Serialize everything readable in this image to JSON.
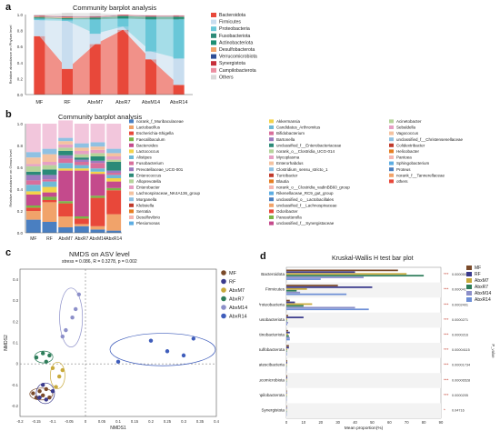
{
  "panels": {
    "a": {
      "label": "a",
      "title": "Community barplot analysis"
    },
    "b": {
      "label": "b",
      "title": "Community barplot analysis"
    },
    "c": {
      "label": "c",
      "title": "NMDS on ASV level",
      "stress": "stress = 0.086, R = 0.3278, p = 0.002"
    },
    "d": {
      "label": "d",
      "title": "Kruskal-Wallis H test bar plot"
    }
  },
  "chart_data": [
    {
      "type": "bar",
      "stacked": true,
      "title": "Community barplot analysis",
      "ylabel": "Relative abundance on Phylum level",
      "categories": [
        "MF",
        "RF",
        "AbxM7",
        "AbxR7",
        "AbxM14",
        "AbxR14"
      ],
      "yticks": [
        "0.0",
        "0.2",
        "0.4",
        "0.6",
        "0.8",
        "1.0"
      ],
      "ylim": [
        0,
        1
      ],
      "series": [
        {
          "name": "Bacteroidota",
          "color": "#e8483a",
          "values": [
            0.73,
            0.32,
            0.63,
            0.81,
            0.44,
            0.12
          ]
        },
        {
          "name": "Firmicutes",
          "color": "#c8ddef",
          "values": [
            0.2,
            0.6,
            0.13,
            0.04,
            0.1,
            0.33
          ]
        },
        {
          "name": "Proteobacteria",
          "color": "#69c7d8",
          "values": [
            0.02,
            0.02,
            0.18,
            0.1,
            0.4,
            0.49
          ]
        },
        {
          "name": "Fusobacteriota",
          "color": "#2b8a78",
          "values": [
            0.005,
            0.005,
            0.01,
            0.01,
            0.01,
            0.01
          ]
        },
        {
          "name": "Actinobacteriota",
          "color": "#1d8f72",
          "values": [
            0.01,
            0.01,
            0.01,
            0.02,
            0.02,
            0.02
          ]
        },
        {
          "name": "Desulfobacterota",
          "color": "#f1a36a",
          "values": [
            0.01,
            0.01,
            0.005,
            0.005,
            0.005,
            0.005
          ]
        },
        {
          "name": "Verrucomicrobiota",
          "color": "#2e4e96",
          "values": [
            0.005,
            0.005,
            0.005,
            0.005,
            0.005,
            0.005
          ]
        },
        {
          "name": "Synergistota",
          "color": "#c72f3a",
          "values": [
            0.005,
            0.005,
            0.005,
            0.005,
            0.005,
            0.005
          ]
        },
        {
          "name": "Campilobacterota",
          "color": "#eb8fa1",
          "values": [
            0.005,
            0.005,
            0.005,
            0.005,
            0.005,
            0.005
          ]
        },
        {
          "name": "Others",
          "color": "#d9d9d9",
          "values": [
            0.01,
            0.04,
            0.04,
            0.0,
            0.0,
            0.0
          ]
        }
      ]
    },
    {
      "type": "bar",
      "stacked": true,
      "title": "Community barplot analysis",
      "ylabel": "Relative abundance on Genus level",
      "categories": [
        "MF",
        "RF",
        "AbxM7",
        "AbxR7",
        "AbxM14",
        "AbxR14"
      ],
      "yticks": [
        "0.0",
        "0.2",
        "0.4",
        "0.6",
        "0.8",
        "1.0"
      ],
      "ylim": [
        0,
        1
      ],
      "series": [
        {
          "name": "norank_f_Muribaculaceae",
          "color": "#4a7fc1",
          "values": [
            0.12,
            0.1,
            0.05,
            0.06,
            0.03,
            0.02
          ]
        },
        {
          "name": "Lactobacillus",
          "color": "#f1a36a",
          "values": [
            0.08,
            0.18,
            0.1,
            0.02,
            0.03,
            0.15
          ]
        },
        {
          "name": "Escherichia-Shigella",
          "color": "#e8483a",
          "values": [
            0.03,
            0.02,
            0.12,
            0.05,
            0.26,
            0.22
          ]
        },
        {
          "name": "Faecalibaculum",
          "color": "#7ab648",
          "values": [
            0.02,
            0.03,
            0.02,
            0.02,
            0.02,
            0.02
          ]
        },
        {
          "name": "Bacteroides",
          "color": "#c44a8c",
          "values": [
            0.1,
            0.04,
            0.28,
            0.42,
            0.2,
            0.06
          ]
        },
        {
          "name": "Lactococcus",
          "color": "#f3d34a",
          "values": [
            0.03,
            0.05,
            0.02,
            0.02,
            0.02,
            0.03
          ]
        },
        {
          "name": "Alistipes",
          "color": "#6fbad6",
          "values": [
            0.06,
            0.05,
            0.05,
            0.03,
            0.03,
            0.03
          ]
        },
        {
          "name": "Fusobacterium",
          "color": "#d86f9b",
          "values": [
            0.04,
            0.02,
            0.04,
            0.03,
            0.05,
            0.02
          ]
        },
        {
          "name": "Prevotellaceae_UCG-001",
          "color": "#9d7bbf",
          "values": [
            0.05,
            0.04,
            0.03,
            0.02,
            0.02,
            0.02
          ]
        },
        {
          "name": "Enterococcus",
          "color": "#2b8a78",
          "values": [
            0.03,
            0.05,
            0.04,
            0.02,
            0.04,
            0.08
          ]
        },
        {
          "name": "Alloprevotella",
          "color": "#b5d39a",
          "values": [
            0.05,
            0.04,
            0.03,
            0.03,
            0.03,
            0.02
          ]
        },
        {
          "name": "Enterobacter",
          "color": "#e6a0c4",
          "values": [
            0.02,
            0.03,
            0.03,
            0.03,
            0.03,
            0.03
          ]
        },
        {
          "name": "Lachnospiraceae_NK4A136_group",
          "color": "#f4c2a0",
          "values": [
            0.06,
            0.07,
            0.03,
            0.03,
            0.03,
            0.03
          ]
        },
        {
          "name": "Morganella",
          "color": "#8fc1e3",
          "values": [
            0.05,
            0.05,
            0.03,
            0.04,
            0.04,
            0.04
          ]
        },
        {
          "name": "others",
          "color": "#f2c6dc",
          "values": [
            0.26,
            0.23,
            0.16,
            0.18,
            0.17,
            0.23
          ]
        }
      ],
      "legend_columns": [
        [
          "norank_f_Muribaculaceae",
          "Lactobacillus",
          "Escherichia-Shigella",
          "Faecalibaculum",
          "Bacteroides",
          "Lactococcus",
          "Alistipes",
          "Fusobacterium",
          "Prevotellaceae_UCG-001",
          "Enterococcus",
          "Alloprevotella",
          "Enterobacter",
          "Lachnospiraceae_NK4A136_group",
          "Morganella",
          "Klebsiella",
          "Serratia",
          "Desulfovibrio",
          "Plesiomonas"
        ],
        [
          "Akkermansia",
          "Candidatus_Arthromitus",
          "Bifidobacterium",
          "Bartonella",
          "unclassified_f__Enterobacteriaceae",
          "norank_o__Clostridia_UCG-014",
          "Mycoplasma",
          "Enterorhabdus",
          "Clostridium_sensu_stricto_1",
          "Turicibacter",
          "Blautia",
          "norank_o__Clostridia_vadinBB60_group",
          "Rikenellaceae_RC9_gut_group",
          "unclassified_o__Lactobacillales",
          "unclassified_f__Lachnospiraceae",
          "Odoribacter",
          "Parasutterella",
          "unclassified_f__Synergistaceae"
        ],
        [
          "Acinetobacter",
          "Sebaldella",
          "Vagococcus",
          "unclassified_f__Christensenellaceae",
          "Colidextribacter",
          "Helicobacter",
          "Pantoea",
          "Sphingobacterium",
          "Proteus",
          "norank_f__Tannerellaceae",
          "others"
        ]
      ],
      "legend_colors": [
        "#4a7fc1",
        "#f1a36a",
        "#e8483a",
        "#7ab648",
        "#c44a8c",
        "#f3d34a",
        "#6fbad6",
        "#d86f9b",
        "#9d7bbf",
        "#2b8a78",
        "#b5d39a",
        "#e6a0c4",
        "#f4c2a0",
        "#8fc1e3",
        "#c0392b",
        "#e67e22",
        "#f5b7b1",
        "#5dade2"
      ]
    },
    {
      "type": "scatter",
      "title": "NMDS on ASV level",
      "subtitle": "stress = 0.086, R = 0.3278, p = 0.002",
      "xlabel": "NMDS1",
      "ylabel": "NMDS2",
      "xlim": [
        -0.2,
        0.4
      ],
      "ylim": [
        -0.25,
        0.45
      ],
      "xticks": [
        -0.2,
        -0.15,
        -0.1,
        -0.05,
        0,
        0.05,
        0.1,
        0.15,
        0.2,
        0.25,
        0.3,
        0.35,
        0.4
      ],
      "xtick_labels": [
        "-0.2",
        "-0.15",
        "-0.1",
        "-0.05",
        "0",
        "0.05",
        "0.1",
        "0.15",
        "0.2",
        "0.25",
        "0.3",
        "0.35",
        "0.4"
      ],
      "yticks": [
        -0.2,
        -0.1,
        0,
        0.1,
        0.2,
        0.3,
        0.4
      ],
      "ytick_labels": [
        "-0.2",
        "-0.1",
        "0",
        "0.1",
        "0.2",
        "0.3",
        "0.4"
      ],
      "groups": [
        {
          "name": "MF",
          "color": "#7a4a2a",
          "points": [
            [
              -0.16,
              -0.14
            ],
            [
              -0.14,
              -0.13
            ],
            [
              -0.13,
              -0.15
            ],
            [
              -0.11,
              -0.16
            ],
            [
              -0.12,
              -0.12
            ],
            [
              -0.15,
              -0.16
            ]
          ]
        },
        {
          "name": "RF",
          "color": "#3a3a8c",
          "points": [
            [
              -0.14,
              -0.16
            ],
            [
              -0.1,
              -0.13
            ],
            [
              -0.12,
              -0.17
            ],
            [
              -0.13,
              -0.1
            ]
          ]
        },
        {
          "name": "AbxM7",
          "color": "#c8a93a",
          "points": [
            [
              -0.1,
              -0.02
            ],
            [
              -0.08,
              -0.06
            ],
            [
              -0.07,
              -0.03
            ],
            [
              -0.09,
              -0.11
            ]
          ]
        },
        {
          "name": "AbxR7",
          "color": "#2e7d5a",
          "points": [
            [
              -0.15,
              0.03
            ],
            [
              -0.13,
              0.05
            ],
            [
              -0.11,
              0.04
            ],
            [
              -0.12,
              0.01
            ]
          ]
        },
        {
          "name": "AbxM14",
          "color": "#8c8fc9",
          "points": [
            [
              -0.04,
              0.22
            ],
            [
              -0.03,
              0.26
            ],
            [
              -0.02,
              0.33
            ],
            [
              -0.06,
              0.16
            ],
            [
              -0.07,
              0.13
            ]
          ]
        },
        {
          "name": "AbxR14",
          "color": "#3f5dbb",
          "points": [
            [
              0.1,
              0.01
            ],
            [
              0.2,
              0.11
            ],
            [
              0.25,
              0.06
            ],
            [
              0.3,
              0.04
            ],
            [
              0.33,
              0.12
            ]
          ]
        }
      ],
      "legend_position": "right"
    },
    {
      "type": "bar",
      "orientation": "horizontal",
      "title": "Kruskal-Wallis H test bar plot",
      "xlabel": "Mean proportion(%)",
      "ylabel": "P_value",
      "xticks": [
        0,
        10,
        20,
        30,
        40,
        50,
        60,
        70,
        80,
        90
      ],
      "xlim": [
        0,
        90
      ],
      "categories": [
        "Bacteroidota",
        "Firmicutes",
        "Proteobacteria",
        "Fusobacteriota",
        "Actinobacteriota",
        "Desulfobacterota",
        "Patescibacteria",
        "Verrucomicrobiota",
        "Campilobacterota",
        "Synergistota"
      ],
      "pvalues": [
        "0.00005040",
        "0.000041",
        "0.0002401",
        "0.0000271",
        "0.0000216",
        "0.00004115",
        "0.00001734",
        "0.00006528",
        "0.0000205",
        "0.04716"
      ],
      "stars": [
        "***",
        "***",
        "***",
        "***",
        "***",
        "***",
        "***",
        "***",
        "***",
        "*"
      ],
      "series": [
        {
          "name": "MF",
          "color": "#7a4a2a",
          "values": [
            65,
            30,
            2,
            1,
            1,
            1.5,
            0.5,
            0.5,
            0.3,
            0.3
          ]
        },
        {
          "name": "RF",
          "color": "#3a3a8c",
          "values": [
            40,
            50,
            5,
            10,
            2,
            1.5,
            0.5,
            0.5,
            0.3,
            0.3
          ]
        },
        {
          "name": "AbxM7",
          "color": "#c8a93a",
          "values": [
            70,
            12,
            15,
            0.5,
            1,
            0.5,
            0.3,
            0.3,
            0.3,
            0.2
          ]
        },
        {
          "name": "AbxR7",
          "color": "#2e7d5a",
          "values": [
            80,
            6,
            10,
            0.3,
            1.5,
            0.3,
            0.2,
            0.2,
            0.2,
            0.2
          ]
        },
        {
          "name": "AbxM14",
          "color": "#8c8fc9",
          "values": [
            45,
            8,
            40,
            1,
            2,
            0.3,
            0.2,
            0.2,
            0.2,
            0.2
          ]
        },
        {
          "name": "AbxR14",
          "color": "#6d8fd6",
          "values": [
            20,
            35,
            48,
            0.5,
            2,
            0.3,
            0.2,
            0.2,
            0.2,
            0.2
          ]
        }
      ]
    }
  ]
}
